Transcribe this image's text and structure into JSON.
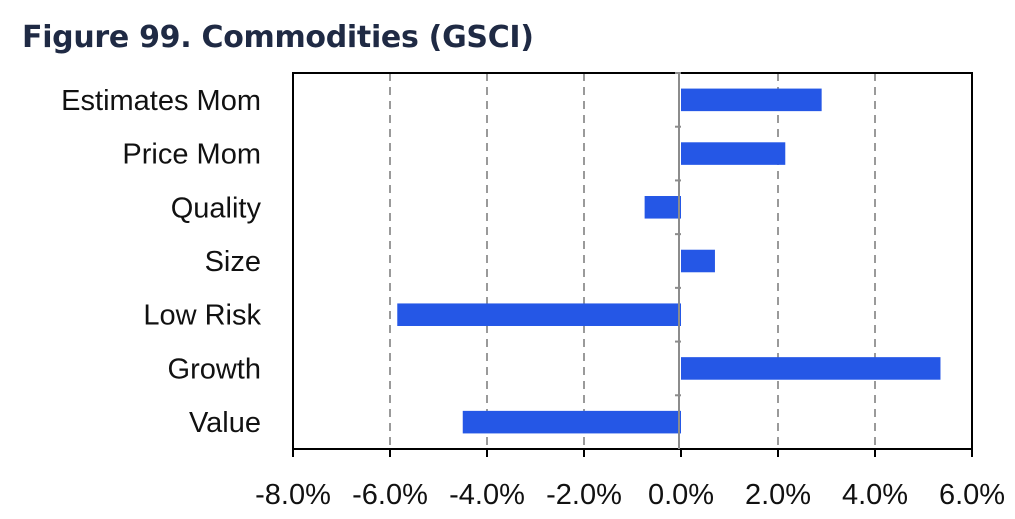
{
  "title": "Figure 99. Commodities (GSCI)",
  "chart_data": {
    "type": "bar",
    "orientation": "horizontal",
    "categories": [
      "Estimates Mom",
      "Price Mom",
      "Quality",
      "Size",
      "Low Risk",
      "Growth",
      "Value"
    ],
    "values": [
      0.029,
      0.0215,
      -0.0075,
      0.007,
      -0.0585,
      0.0535,
      -0.045
    ],
    "xlim": [
      -0.08,
      0.06
    ],
    "xticks": [
      -0.08,
      -0.06,
      -0.04,
      -0.02,
      0.0,
      0.02,
      0.04,
      0.06
    ],
    "xtick_labels": [
      "-8.0%",
      "-6.0%",
      "-4.0%",
      "-2.0%",
      "0.0%",
      "2.0%",
      "4.0%",
      "6.0%"
    ],
    "grid": "vertical-dashed",
    "bar_color": "#2557e6"
  }
}
